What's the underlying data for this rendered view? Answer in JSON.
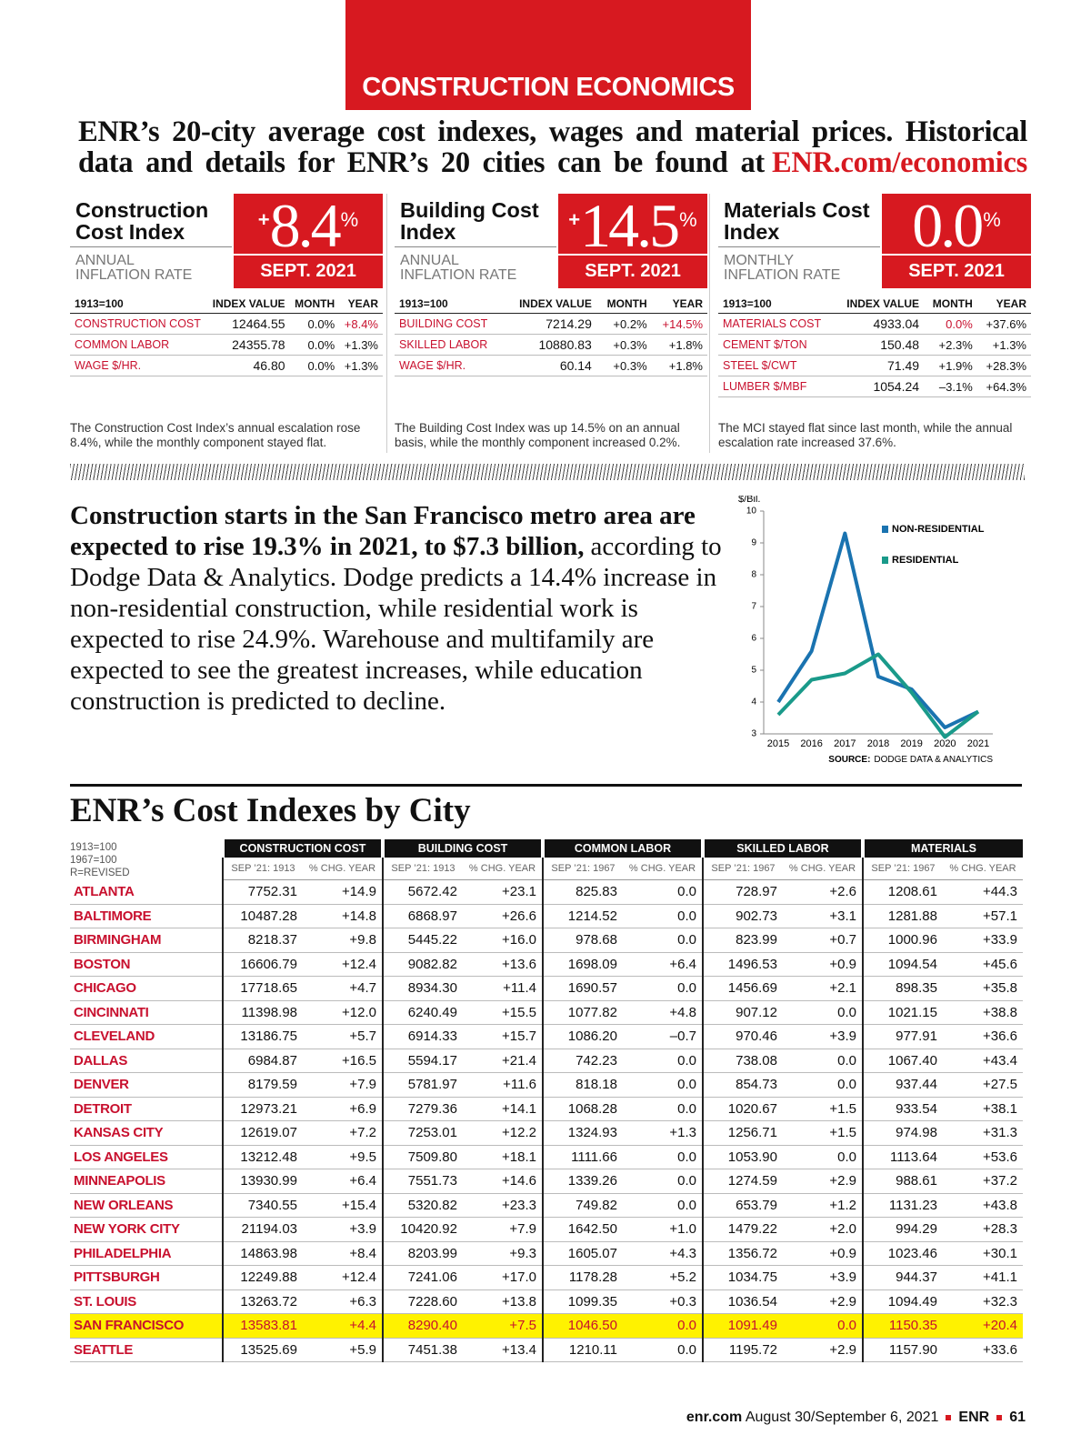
{
  "header": {
    "section": "CONSTRUCTION ECONOMICS",
    "intro": "ENR’s 20-city average cost indexes, wages and material prices. Historical data and details for ENR’s 20 cities can be found at",
    "intro_link": "ENR.com/economics"
  },
  "panels": [
    {
      "title": "Construction Cost Index",
      "sign": "+",
      "rate": "8.4",
      "unit": "%",
      "subtitle": "ANNUAL INFLATION RATE",
      "date": "SEPT. 2021",
      "columns": [
        "1913=100",
        "INDEX VALUE",
        "MONTH",
        "YEAR"
      ],
      "rows": [
        [
          "CONSTRUCTION COST",
          "12464.55",
          "0.0%",
          "+8.4%"
        ],
        [
          "COMMON LABOR",
          "24355.78",
          "0.0%",
          "+1.3%"
        ],
        [
          "WAGE $/HR.",
          "46.80",
          "0.0%",
          "+1.3%"
        ]
      ],
      "note": "The Construction Cost Index’s annual escalation rose 8.4%, while the monthly component stayed flat."
    },
    {
      "title": "Building Cost Index",
      "sign": "+",
      "rate": "14.5",
      "unit": "%",
      "subtitle": "ANNUAL INFLATION RATE",
      "date": "SEPT. 2021",
      "columns": [
        "1913=100",
        "INDEX VALUE",
        "MONTH",
        "YEAR"
      ],
      "rows": [
        [
          "BUILDING COST",
          "7214.29",
          "+0.2%",
          "+14.5%"
        ],
        [
          "SKILLED LABOR",
          "10880.83",
          "+0.3%",
          "+1.8%"
        ],
        [
          "WAGE $/HR.",
          "60.14",
          "+0.3%",
          "+1.8%"
        ]
      ],
      "note": "The Building Cost Index was up 14.5% on an annual basis, while the monthly component increased 0.2%."
    },
    {
      "title": "Materials Cost Index",
      "rate": "0.0",
      "unit": "%",
      "subtitle": "MONTHLY INFLATION RATE",
      "date": "SEPT. 2021",
      "columns": [
        "1913=100",
        "INDEX VALUE",
        "MONTH",
        "YEAR"
      ],
      "rows": [
        [
          "MATERIALS COST",
          "4933.04",
          "0.0%",
          "+37.6%"
        ],
        [
          "CEMENT $/TON",
          "150.48",
          "+2.3%",
          "+1.3%"
        ],
        [
          "STEEL $/CWT",
          "71.49",
          "+1.9%",
          "+28.3%"
        ],
        [
          "LUMBER $/MBF",
          "1054.24",
          "–3.1%",
          "+64.3%"
        ]
      ],
      "note": "The MCI stayed flat since last month, while the annual escalation rate increased 37.6%."
    }
  ],
  "story": {
    "lead": "Construction starts in the San Francisco metro area are expected to rise 19.3% in 2021, to $7.3 billion,",
    "body": "according to Dodge Data & Analytics. Dodge predicts a 14.4% increase in non-residential construction, while residential work is expected to rise 24.9%. Warehouse and multifamily are expected to see the greatest increases, while education construction is predicted to decline."
  },
  "chart_data": {
    "type": "line",
    "y_label": "$/Bil.",
    "categories": [
      "2015",
      "2016",
      "2017",
      "2018",
      "2019",
      "2020",
      "2021"
    ],
    "series": [
      {
        "name": "NON-RESIDENTIAL",
        "color": "#1a73b0",
        "values": [
          4.0,
          5.6,
          9.3,
          4.8,
          4.4,
          3.2,
          3.7
        ]
      },
      {
        "name": "RESIDENTIAL",
        "color": "#1a9a8a",
        "values": [
          3.6,
          4.7,
          4.9,
          5.5,
          4.3,
          2.9,
          3.7
        ]
      }
    ],
    "ylim": [
      3,
      10
    ],
    "yticks": [
      3,
      4,
      5,
      6,
      7,
      8,
      9,
      10
    ],
    "grid": false,
    "legend": "upper right",
    "source_label": "SOURCE:",
    "source": "DODGE DATA & ANALYTICS"
  },
  "city_table": {
    "title": "ENR’s Cost Indexes by City",
    "notes": [
      "1913=100",
      "1967=100",
      "R=REVISED"
    ],
    "groups": [
      "CONSTRUCTION COST",
      "BUILDING COST",
      "COMMON LABOR",
      "SKILLED LABOR",
      "MATERIALS"
    ],
    "subheaders": [
      "SEP ’21: 1913",
      "% CHG. YEAR",
      "SEP ’21: 1913",
      "% CHG. YEAR",
      "SEP ’21: 1967",
      "% CHG. YEAR",
      "SEP ’21: 1967",
      "% CHG. YEAR",
      "SEP ’21: 1967",
      "% CHG. YEAR"
    ],
    "rows": [
      [
        "ATLANTA",
        "7752.31",
        "+14.9",
        "5672.42",
        "+23.1",
        "825.83",
        "0.0",
        "728.97",
        "+2.6",
        "1208.61",
        "+44.3"
      ],
      [
        "BALTIMORE",
        "10487.28",
        "+14.8",
        "6868.97",
        "+26.6",
        "1214.52",
        "0.0",
        "902.73",
        "+3.1",
        "1281.88",
        "+57.1"
      ],
      [
        "BIRMINGHAM",
        "8218.37",
        "+9.8",
        "5445.22",
        "+16.0",
        "978.68",
        "0.0",
        "823.99",
        "+0.7",
        "1000.96",
        "+33.9"
      ],
      [
        "BOSTON",
        "16606.79",
        "+12.4",
        "9082.82",
        "+13.6",
        "1698.09",
        "+6.4",
        "1496.53",
        "+0.9",
        "1094.54",
        "+45.6"
      ],
      [
        "CHICAGO",
        "17718.65",
        "+4.7",
        "8934.30",
        "+11.4",
        "1690.57",
        "0.0",
        "1456.69",
        "+2.1",
        "898.35",
        "+35.8"
      ],
      [
        "CINCINNATI",
        "11398.98",
        "+12.0",
        "6240.49",
        "+15.5",
        "1077.82",
        "+4.8",
        "907.12",
        "0.0",
        "1021.15",
        "+38.8"
      ],
      [
        "CLEVELAND",
        "13186.75",
        "+5.7",
        "6914.33",
        "+15.7",
        "1086.20",
        "–0.7",
        "970.46",
        "+3.9",
        "977.91",
        "+36.6"
      ],
      [
        "DALLAS",
        "6984.87",
        "+16.5",
        "5594.17",
        "+21.4",
        "742.23",
        "0.0",
        "738.08",
        "0.0",
        "1067.40",
        "+43.4"
      ],
      [
        "DENVER",
        "8179.59",
        "+7.9",
        "5781.97",
        "+11.6",
        "818.18",
        "0.0",
        "854.73",
        "0.0",
        "937.44",
        "+27.5"
      ],
      [
        "DETROIT",
        "12973.21",
        "+6.9",
        "7279.36",
        "+14.1",
        "1068.28",
        "0.0",
        "1020.67",
        "+1.5",
        "933.54",
        "+38.1"
      ],
      [
        "KANSAS CITY",
        "12619.07",
        "+7.2",
        "7253.01",
        "+12.2",
        "1324.93",
        "+1.3",
        "1256.71",
        "+1.5",
        "974.98",
        "+31.3"
      ],
      [
        "LOS ANGELES",
        "13212.48",
        "+9.5",
        "7509.80",
        "+18.1",
        "1111.66",
        "0.0",
        "1053.90",
        "0.0",
        "1113.64",
        "+53.6"
      ],
      [
        "MINNEAPOLIS",
        "13930.99",
        "+6.4",
        "7551.73",
        "+14.6",
        "1339.26",
        "0.0",
        "1274.59",
        "+2.9",
        "988.61",
        "+37.2"
      ],
      [
        "NEW ORLEANS",
        "7340.55",
        "+15.4",
        "5320.82",
        "+23.3",
        "749.82",
        "0.0",
        "653.79",
        "+1.2",
        "1131.23",
        "+43.8"
      ],
      [
        "NEW YORK CITY",
        "21194.03",
        "+3.9",
        "10420.92",
        "+7.9",
        "1642.50",
        "+1.0",
        "1479.22",
        "+2.0",
        "994.29",
        "+28.3"
      ],
      [
        "PHILADELPHIA",
        "14863.98",
        "+8.4",
        "8203.99",
        "+9.3",
        "1605.07",
        "+4.3",
        "1356.72",
        "+0.9",
        "1023.46",
        "+30.1"
      ],
      [
        "PITTSBURGH",
        "12249.88",
        "+12.4",
        "7241.06",
        "+17.0",
        "1178.28",
        "+5.2",
        "1034.75",
        "+3.9",
        "944.37",
        "+41.1"
      ],
      [
        "ST. LOUIS",
        "13263.72",
        "+6.3",
        "7228.60",
        "+13.8",
        "1099.35",
        "+0.3",
        "1036.54",
        "+2.9",
        "1094.49",
        "+32.3"
      ],
      [
        "SAN FRANCISCO",
        "13583.81",
        "+4.4",
        "8290.40",
        "+7.5",
        "1046.50",
        "0.0",
        "1091.49",
        "0.0",
        "1150.35",
        "+20.4"
      ],
      [
        "SEATTLE",
        "13525.69",
        "+5.9",
        "7451.38",
        "+13.4",
        "1210.11",
        "0.0",
        "1195.72",
        "+2.9",
        "1157.90",
        "+33.6"
      ]
    ]
  },
  "footer": {
    "site": "enr.com",
    "date": "August 30/September 6, 2021",
    "brand": "ENR",
    "page": "61"
  }
}
